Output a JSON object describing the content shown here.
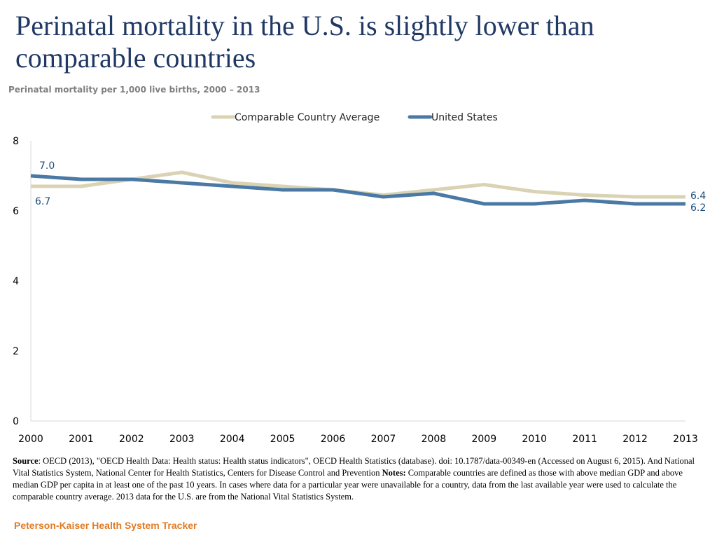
{
  "header": {
    "title": "Perinatal mortality in the U.S. is slightly lower than comparable countries",
    "subtitle": "Perinatal mortality per 1,000 live births, 2000 – 2013"
  },
  "chart_data": {
    "type": "line",
    "title": "Perinatal mortality in the U.S. is slightly lower than comparable countries",
    "subtitle": "Perinatal mortality per 1,000 live births, 2000 – 2013",
    "xlabel": "",
    "ylabel": "",
    "ylim": [
      0,
      8
    ],
    "yticks": [
      "0",
      "2",
      "4",
      "6",
      "8"
    ],
    "grid": false,
    "legend_position": "top-center",
    "categories": [
      "2000",
      "2001",
      "2002",
      "2003",
      "2004",
      "2005",
      "2006",
      "2007",
      "2008",
      "2009",
      "2010",
      "2011",
      "2012",
      "2013"
    ],
    "series": [
      {
        "name": "Comparable Country Average",
        "color": "#d9d3b4",
        "values": [
          6.7,
          6.7,
          6.9,
          7.1,
          6.8,
          6.7,
          6.6,
          6.45,
          6.6,
          6.75,
          6.55,
          6.45,
          6.4,
          6.4
        ],
        "start_label": "6.7",
        "end_label": "6.4"
      },
      {
        "name": "United States",
        "color": "#4a79a5",
        "values": [
          7.0,
          6.9,
          6.9,
          6.8,
          6.7,
          6.6,
          6.6,
          6.4,
          6.5,
          6.2,
          6.2,
          6.3,
          6.2,
          6.2
        ],
        "start_label": "7.0",
        "end_label": "6.2"
      }
    ]
  },
  "source": {
    "source_label": "Source",
    "source_text": ": OECD (2013), \"OECD Health Data: Health status: Health status indicators\", OECD Health Statistics (database). doi: 10.1787/data-00349-en (Accessed on August 6, 2015). And National Vital Statistics System, National Center for Health Statistics, Centers for Disease Control and Prevention ",
    "notes_label": "Notes:",
    "notes_text": " Comparable countries are defined as those with above median GDP and above median GDP per capita in at least one of the past 10 years. In cases where data for a particular year were unavailable for a country, data from the last available year were used to calculate the comparable country average. 2013 data for the U.S. are from the National Vital Statistics System."
  },
  "footer": {
    "brand": "Peterson-Kaiser Health System Tracker"
  }
}
